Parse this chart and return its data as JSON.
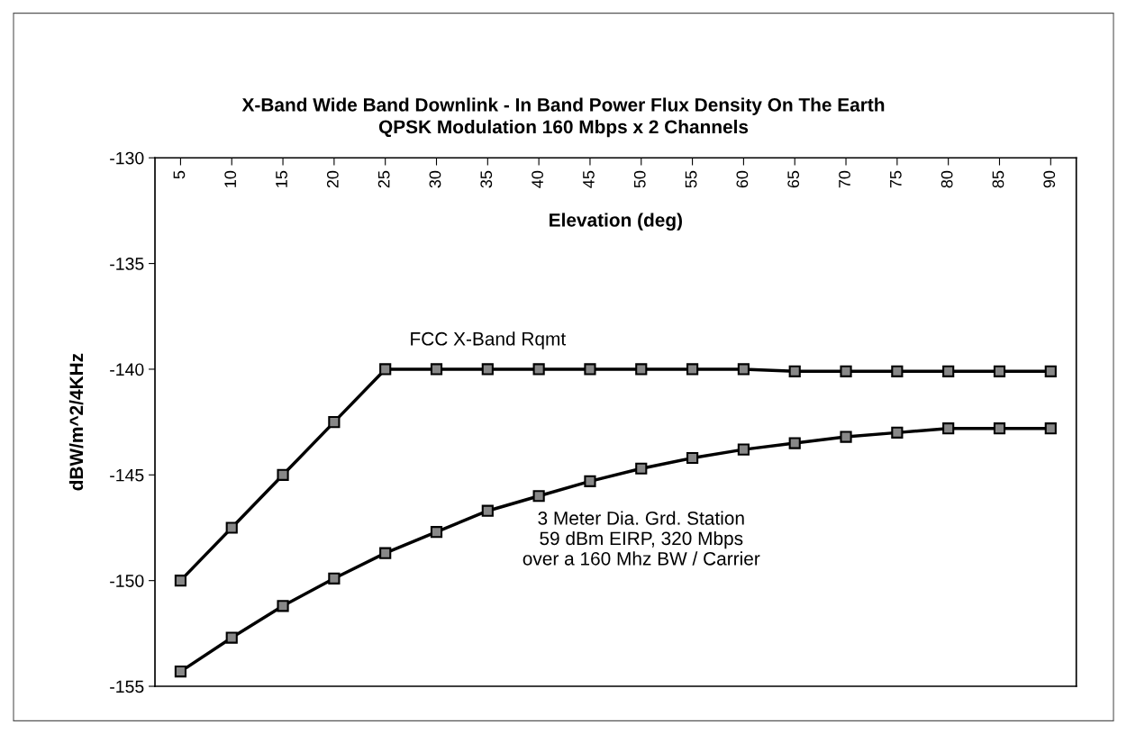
{
  "chart_data": {
    "type": "line",
    "title": "X-Band Wide Band Downlink - In Band Power Flux Density On The Earth",
    "subtitle": "QPSK Modulation 160 Mbps x 2 Channels",
    "xlabel": "Elevation (deg)",
    "ylabel": "dBW/m^2/4KHz",
    "categories": [
      "5",
      "10",
      "15",
      "20",
      "25",
      "30",
      "35",
      "40",
      "45",
      "50",
      "55",
      "60",
      "65",
      "70",
      "75",
      "80",
      "85",
      "90"
    ],
    "series": [
      {
        "name": "FCC X-Band Rqmt",
        "color": "#000000",
        "values": [
          -150,
          -147.5,
          -145,
          -142.5,
          -140,
          -140,
          -140,
          -140,
          -140,
          -140,
          -140,
          -140,
          -140.1,
          -140.1,
          -140.1,
          -140.1,
          -140.1,
          -140.1
        ]
      },
      {
        "name": "3 Meter Dia. Grd. Station\n59 dBm EIRP, 320 Mbps\nover a 160 Mhz BW / Carrier",
        "color": "#000000",
        "values": [
          -154.3,
          -152.7,
          -151.2,
          -149.9,
          -148.7,
          -147.7,
          -146.7,
          -146.0,
          -145.3,
          -144.7,
          -144.2,
          -143.8,
          -143.5,
          -143.2,
          -143.0,
          -142.8,
          -142.8,
          -142.8
        ]
      }
    ],
    "ylim": [
      -155,
      -130
    ],
    "yticks": [
      -155,
      -150,
      -145,
      -140,
      -135,
      -130
    ],
    "grid": false,
    "legend": false,
    "marker": "square",
    "line_style": "solid"
  }
}
